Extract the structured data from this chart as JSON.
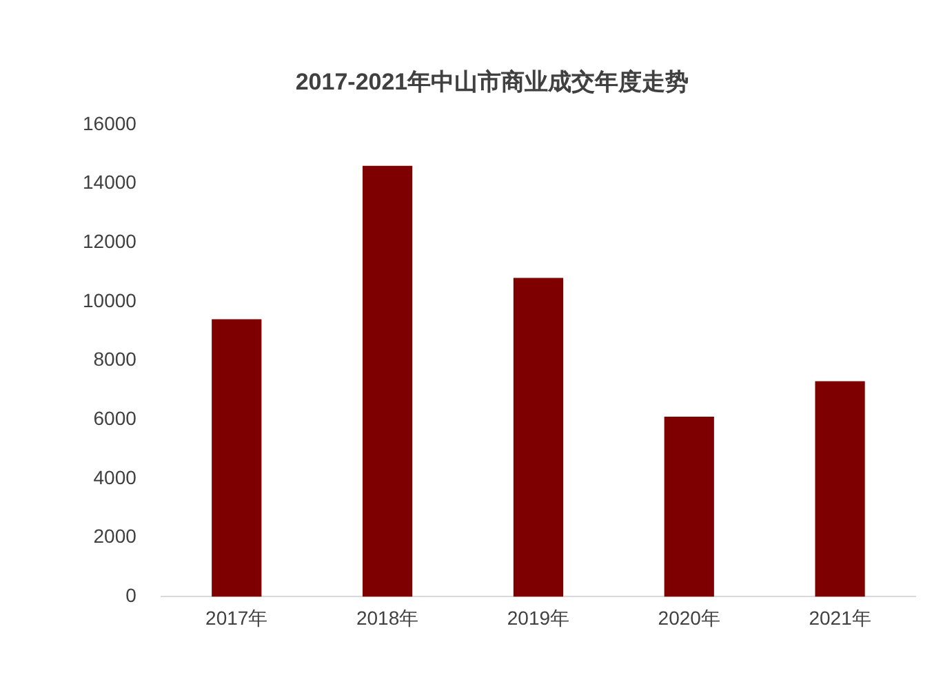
{
  "chart_data": {
    "type": "bar",
    "title": "2017-2021年中山市商业成交年度走势",
    "categories": [
      "2017年",
      "2018年",
      "2019年",
      "2020年",
      "2021年"
    ],
    "values": [
      9400,
      14600,
      10800,
      6100,
      7300
    ],
    "color": "#7f0000",
    "ylim": [
      0,
      16000
    ],
    "yticks": [
      0,
      2000,
      4000,
      6000,
      8000,
      10000,
      12000,
      14000,
      16000
    ],
    "grid": false,
    "legend": false
  }
}
